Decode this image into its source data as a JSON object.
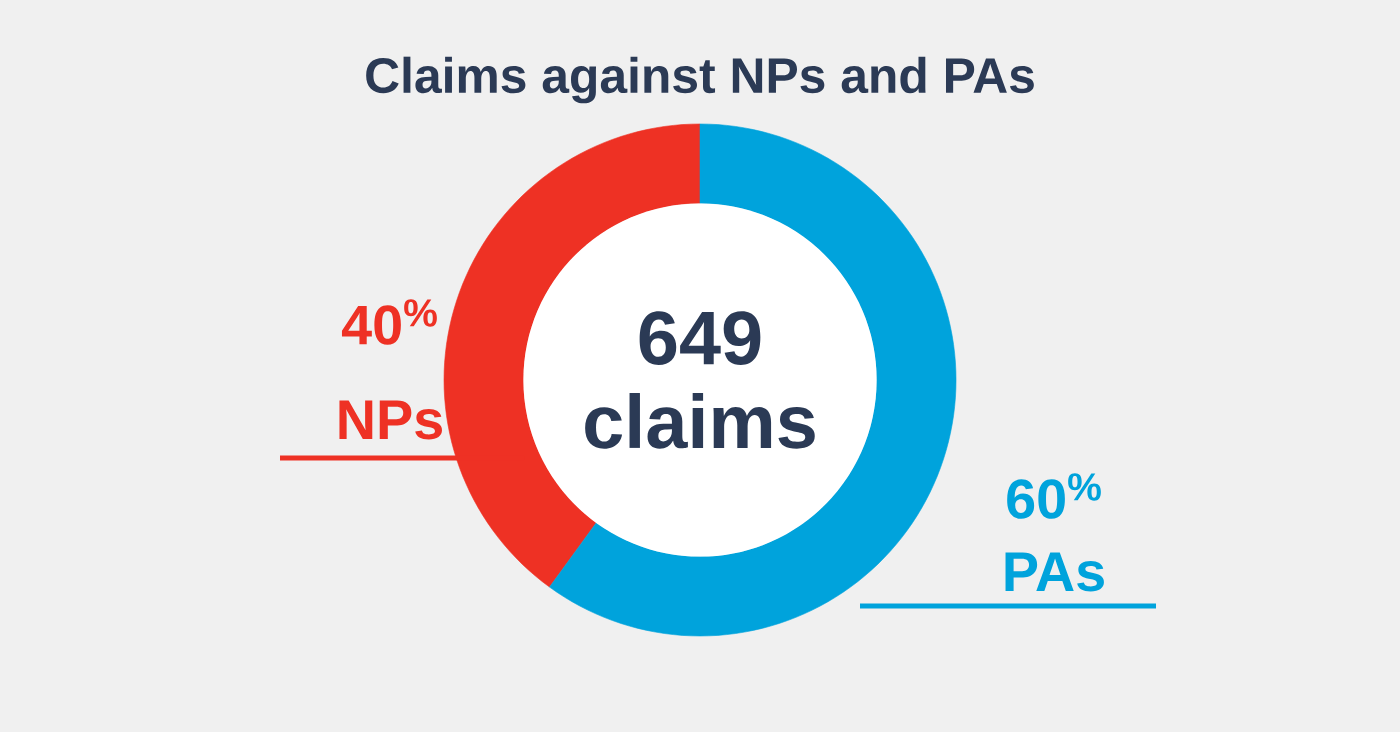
{
  "chart_data": {
    "type": "donut",
    "title": "Claims against NPs and PAs",
    "categories": [
      "NPs",
      "PAs"
    ],
    "values": [
      40,
      60
    ],
    "colors": [
      "#ee3124",
      "#00a3dc"
    ],
    "value_labels": [
      "40$^{%}$",
      "60$^{%}$"
    ],
    "annotations": [
      "649 claims"
    ]
  }
}
